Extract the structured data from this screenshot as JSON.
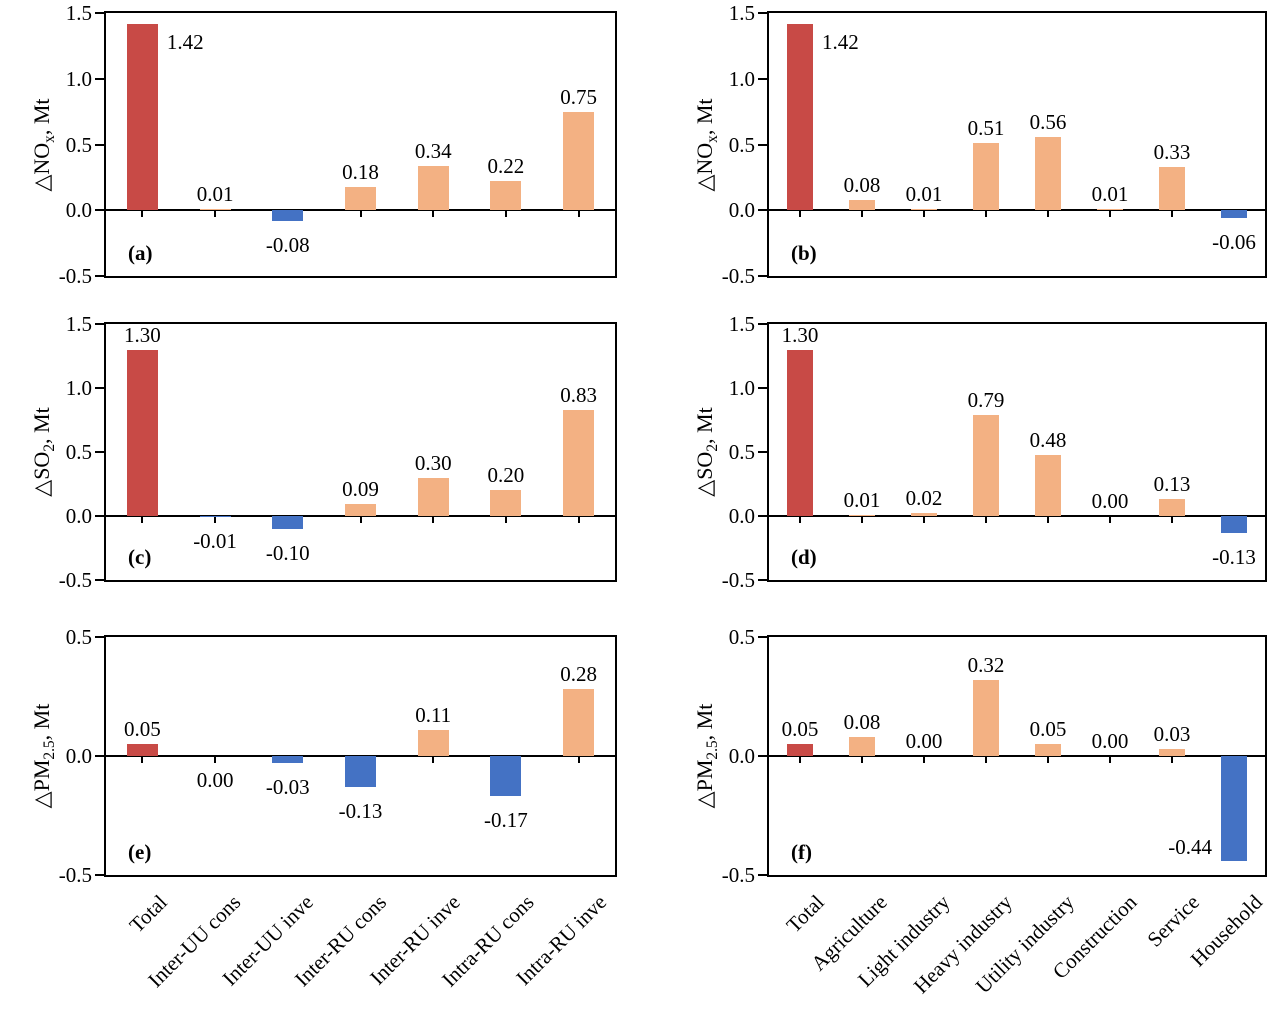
{
  "colors": {
    "total_bar": "#C84A46",
    "positive_bar": "#F3B183",
    "negative_bar": "#4472C4",
    "axis": "#000000"
  },
  "sectors_left": [
    "Total",
    "Inter-UU cons",
    "Inter-UU inve",
    "Inter-RU cons",
    "Inter-RU inve",
    "Intra-RU cons",
    "Intra-RU inve"
  ],
  "sectors_right": [
    "Total",
    "Agriculture",
    "Light industry",
    "Heavy industry",
    "Utility industry",
    "Construction",
    "Service",
    "Household"
  ],
  "chart_data": [
    {
      "type": "bar",
      "panel_label": "(a)",
      "ylabel_prefix": "△NO",
      "ylabel_sub": "x",
      "ylabel_suffix": ", Mt",
      "categories_key": "sectors_left",
      "ylim": [
        -0.5,
        1.5
      ],
      "yticks": [
        "1.5",
        "1.0",
        "0.5",
        "0.0",
        "-0.5"
      ],
      "values": [
        1.42,
        0.01,
        -0.08,
        0.18,
        0.34,
        0.22,
        0.75
      ],
      "labels": [
        "1.42",
        "0.01",
        "-0.08",
        "0.18",
        "0.34",
        "0.22",
        "0.75"
      ],
      "label_sides": [
        "right",
        "above",
        "below",
        "above",
        "above",
        "above",
        "above"
      ]
    },
    {
      "type": "bar",
      "panel_label": "(b)",
      "ylabel_prefix": "△NO",
      "ylabel_sub": "x",
      "ylabel_suffix": ", Mt",
      "categories_key": "sectors_right",
      "ylim": [
        -0.5,
        1.5
      ],
      "yticks": [
        "1.5",
        "1.0",
        "0.5",
        "0.0",
        "-0.5"
      ],
      "values": [
        1.42,
        0.08,
        0.01,
        0.51,
        0.56,
        0.01,
        0.33,
        -0.06
      ],
      "labels": [
        "1.42",
        "0.08",
        "0.01",
        "0.51",
        "0.56",
        "0.01",
        "0.33",
        "-0.06"
      ],
      "label_sides": [
        "right",
        "above",
        "above",
        "above",
        "above",
        "above",
        "above",
        "below"
      ]
    },
    {
      "type": "bar",
      "panel_label": "(c)",
      "ylabel_prefix": "△SO",
      "ylabel_sub": "2",
      "ylabel_suffix": ", Mt",
      "categories_key": "sectors_left",
      "ylim": [
        -0.5,
        1.5
      ],
      "yticks": [
        "1.5",
        "1.0",
        "0.5",
        "0.0",
        "-0.5"
      ],
      "values": [
        1.3,
        -0.01,
        -0.1,
        0.09,
        0.3,
        0.2,
        0.83
      ],
      "labels": [
        "1.30",
        "-0.01",
        "-0.10",
        "0.09",
        "0.30",
        "0.20",
        "0.83"
      ],
      "label_sides": [
        "above",
        "below",
        "below",
        "above",
        "above",
        "above",
        "above"
      ]
    },
    {
      "type": "bar",
      "panel_label": "(d)",
      "ylabel_prefix": "△SO",
      "ylabel_sub": "2",
      "ylabel_suffix": ", Mt",
      "categories_key": "sectors_right",
      "ylim": [
        -0.5,
        1.5
      ],
      "yticks": [
        "1.5",
        "1.0",
        "0.5",
        "0.0",
        "-0.5"
      ],
      "values": [
        1.3,
        0.01,
        0.02,
        0.79,
        0.48,
        0.0,
        0.13,
        -0.13
      ],
      "labels": [
        "1.30",
        "0.01",
        "0.02",
        "0.79",
        "0.48",
        "0.00",
        "0.13",
        "-0.13"
      ],
      "label_sides": [
        "above",
        "above",
        "above",
        "above",
        "above",
        "above",
        "above",
        "below"
      ]
    },
    {
      "type": "bar",
      "panel_label": "(e)",
      "ylabel_prefix": "△PM",
      "ylabel_sub": "2.5",
      "ylabel_suffix": ", Mt",
      "categories_key": "sectors_left",
      "ylim": [
        -0.5,
        0.5
      ],
      "yticks": [
        "0.5",
        "0.0",
        "-0.5"
      ],
      "values": [
        0.05,
        0.0,
        -0.03,
        -0.13,
        0.11,
        -0.17,
        0.28
      ],
      "labels": [
        "0.05",
        "0.00",
        "-0.03",
        "-0.13",
        "0.11",
        "-0.17",
        "0.28"
      ],
      "label_sides": [
        "above",
        "below",
        "below",
        "below",
        "above",
        "below",
        "above"
      ]
    },
    {
      "type": "bar",
      "panel_label": "(f)",
      "ylabel_prefix": "△PM",
      "ylabel_sub": "2.5",
      "ylabel_suffix": ", Mt",
      "categories_key": "sectors_right",
      "ylim": [
        -0.5,
        0.5
      ],
      "yticks": [
        "0.5",
        "0.0",
        "-0.5"
      ],
      "values": [
        0.05,
        0.08,
        0.0,
        0.32,
        0.05,
        0.0,
        0.03,
        -0.44
      ],
      "labels": [
        "0.05",
        "0.08",
        "0.00",
        "0.32",
        "0.05",
        "0.00",
        "0.03",
        "-0.44"
      ],
      "label_sides": [
        "above",
        "above",
        "above",
        "above",
        "above",
        "above",
        "above",
        "left"
      ]
    }
  ]
}
